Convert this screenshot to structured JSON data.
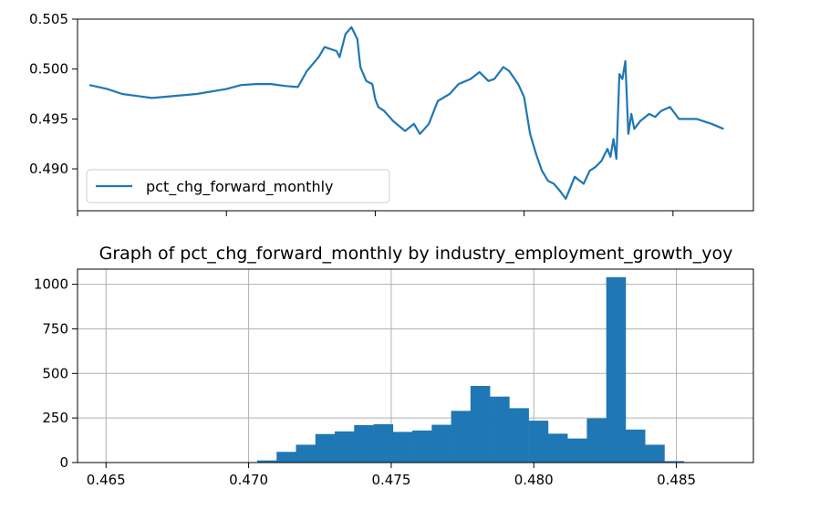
{
  "chart_data": [
    {
      "type": "line",
      "title": "",
      "xlabel": "",
      "ylabel": "",
      "ylim": [
        0.4858,
        0.505
      ],
      "yticks": [
        0.49,
        0.495,
        0.5,
        0.505
      ],
      "ytick_labels": [
        "0.490",
        "0.495",
        "0.500",
        "0.505"
      ],
      "xlim": [
        0.465,
        0.4877
      ],
      "xticks": [
        0.465,
        0.47,
        0.475,
        0.48,
        0.485
      ],
      "grid": false,
      "legend": "lower-left",
      "series": [
        {
          "name": "pct_chg_forward_monthly",
          "color": "#1f77b4",
          "x": [
            0.4654,
            0.466,
            0.4665,
            0.467,
            0.4675,
            0.469,
            0.47,
            0.4705,
            0.471,
            0.4715,
            0.472,
            0.4724,
            0.4727,
            0.4731,
            0.4733,
            0.4735,
            0.4737,
            0.4738,
            0.474,
            0.4742,
            0.4744,
            0.4745,
            0.4747,
            0.4749,
            0.475,
            0.4751,
            0.4753,
            0.4756,
            0.476,
            0.4763,
            0.4765,
            0.4768,
            0.4771,
            0.4775,
            0.4778,
            0.4782,
            0.4785,
            0.4788,
            0.479,
            0.4793,
            0.4795,
            0.4798,
            0.48,
            0.4802,
            0.4804,
            0.4806,
            0.4808,
            0.481,
            0.4812,
            0.4814,
            0.4817,
            0.482,
            0.4822,
            0.4824,
            0.4826,
            0.4828,
            0.4829,
            0.483,
            0.4831,
            0.4832,
            0.4833,
            0.4834,
            0.4835,
            0.4836,
            0.4837,
            0.4839,
            0.4842,
            0.4844,
            0.4846,
            0.4849,
            0.4852,
            0.4858,
            0.4863,
            0.4867
          ],
          "y": [
            0.4984,
            0.498,
            0.4975,
            0.4973,
            0.4971,
            0.4975,
            0.498,
            0.4984,
            0.4985,
            0.4985,
            0.4983,
            0.4982,
            0.4998,
            0.5012,
            0.5022,
            0.502,
            0.5018,
            0.5012,
            0.5035,
            0.5042,
            0.503,
            0.5002,
            0.4988,
            0.4985,
            0.497,
            0.4962,
            0.4958,
            0.4948,
            0.4938,
            0.4945,
            0.4935,
            0.4945,
            0.4968,
            0.4975,
            0.4985,
            0.499,
            0.4997,
            0.4988,
            0.499,
            0.5002,
            0.4998,
            0.4985,
            0.4972,
            0.4935,
            0.4915,
            0.4898,
            0.4888,
            0.4885,
            0.4878,
            0.487,
            0.4892,
            0.4885,
            0.4898,
            0.4902,
            0.4908,
            0.492,
            0.4912,
            0.493,
            0.491,
            0.4995,
            0.499,
            0.5008,
            0.4935,
            0.4955,
            0.494,
            0.4948,
            0.4955,
            0.4952,
            0.4958,
            0.4962,
            0.495,
            0.495,
            0.4945,
            0.494
          ]
        }
      ]
    },
    {
      "type": "bar",
      "title": "Graph of pct_chg_forward_monthly by industry_employment_growth_yoy",
      "xlabel": "",
      "ylabel": "",
      "xlim": [
        0.464,
        0.4877
      ],
      "ylim": [
        0,
        1085
      ],
      "xticks": [
        0.465,
        0.47,
        0.475,
        0.48,
        0.485
      ],
      "xtick_labels": [
        "0.465",
        "0.470",
        "0.475",
        "0.480",
        "0.485"
      ],
      "yticks": [
        0,
        250,
        500,
        750,
        1000
      ],
      "ytick_labels": [
        "0",
        "250",
        "500",
        "750",
        "1000"
      ],
      "grid": true,
      "color": "#1f77b4",
      "bin_edges": [
        0.4703,
        0.47098,
        0.47166,
        0.47234,
        0.47302,
        0.4737,
        0.47438,
        0.47506,
        0.47574,
        0.47642,
        0.4771,
        0.47778,
        0.47846,
        0.47914,
        0.47982,
        0.4805,
        0.48118,
        0.48186,
        0.48254,
        0.48322,
        0.4839,
        0.48458,
        0.48526,
        0.48594
      ],
      "values": [
        12,
        60,
        100,
        160,
        175,
        210,
        215,
        172,
        180,
        212,
        290,
        430,
        370,
        305,
        235,
        162,
        135,
        248,
        1040,
        185,
        100,
        8,
        0
      ]
    }
  ]
}
